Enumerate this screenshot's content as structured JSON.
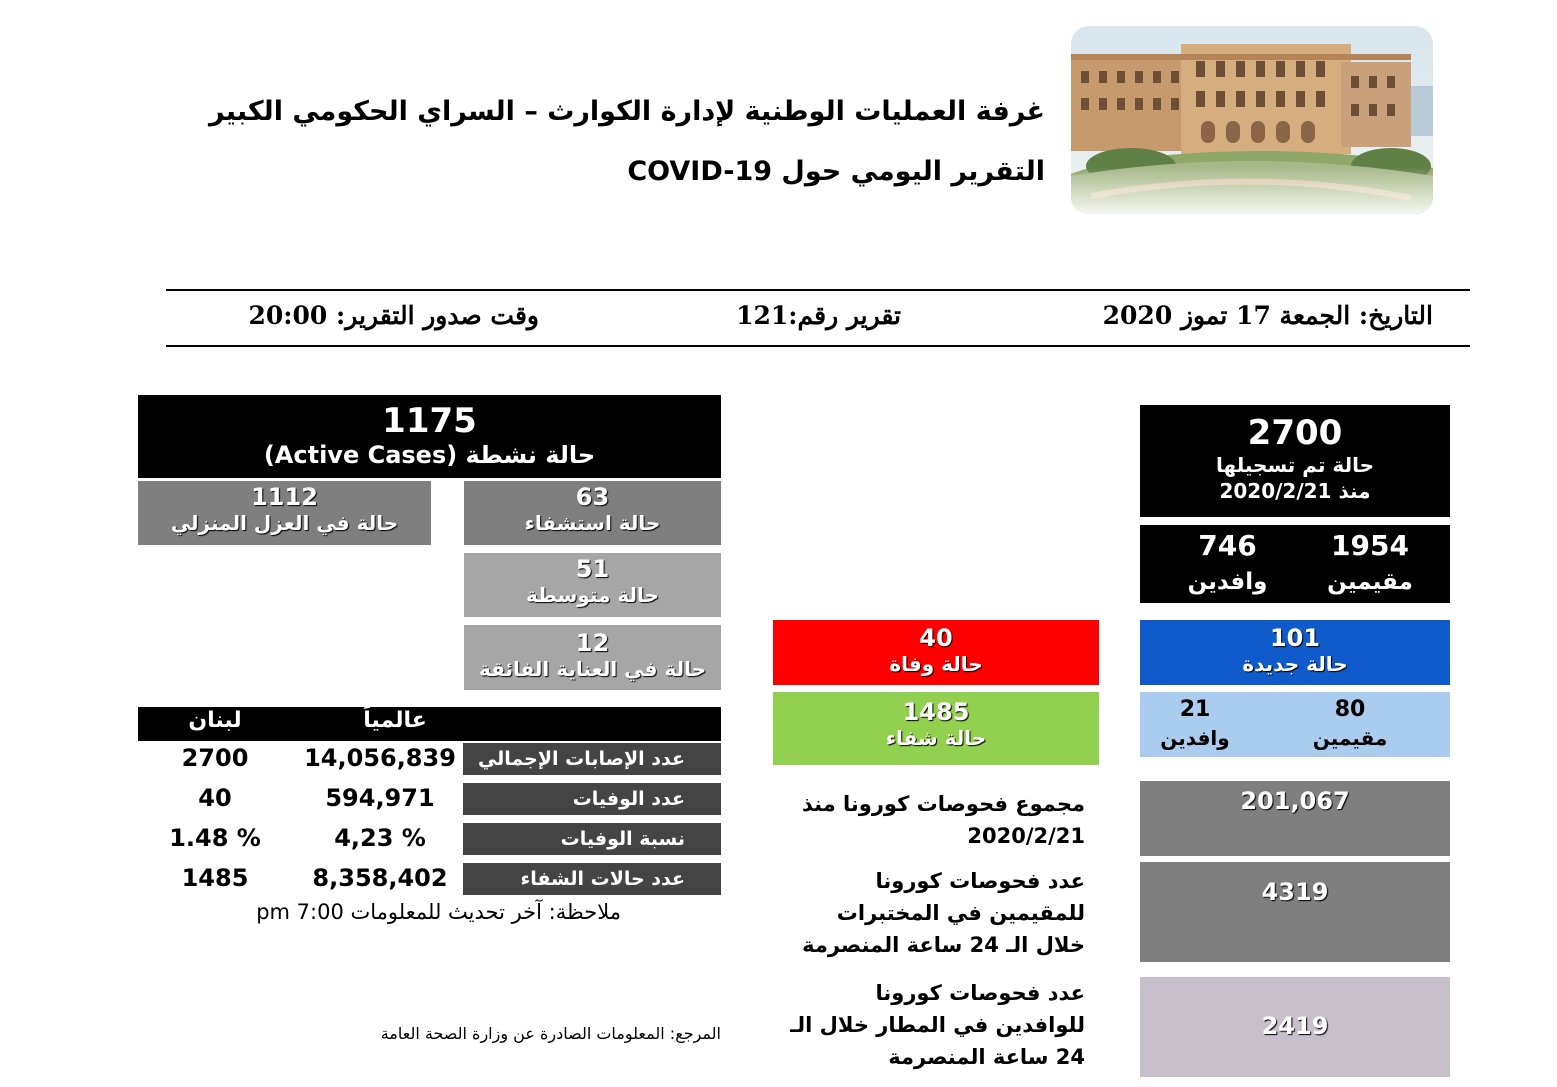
{
  "header": {
    "title_line1": "غرفة العمليات الوطنية لإدارة الكوارث – السراي الحكومي الكبير",
    "title_line2": "التقرير اليومي حول COVID-19"
  },
  "report_meta": {
    "date": "التاريخ: الجمعة 17 تموز 2020",
    "report_number": "تقرير رقم:121",
    "issue_time": "وقت صدور التقرير: 20:00"
  },
  "total_cases": {
    "value": "2700",
    "label": "حالة تم تسجيلها",
    "since": "منذ 2020/2/21",
    "residents_value": "1954",
    "residents_label": "مقيمين",
    "arrivals_value": "746",
    "arrivals_label": "وافدين"
  },
  "active_cases": {
    "value": "1175",
    "label": "حالة نشطة (Active Cases)",
    "home_isolation_value": "1112",
    "home_isolation_label": "حالة في العزل المنزلي",
    "hospitalized_value": "63",
    "hospitalized_label": "حالة استشفاء",
    "moderate_value": "51",
    "moderate_label": "حالة متوسطة",
    "icu_value": "12",
    "icu_label": "حالة في العناية الفائقة"
  },
  "new_cases": {
    "value": "101",
    "label": "حالة جديدة",
    "residents_value": "80",
    "residents_label": "مقيمين",
    "arrivals_value": "21",
    "arrivals_label": "وافدين"
  },
  "deaths": {
    "value": "40",
    "label": "حالة وفاة"
  },
  "recoveries": {
    "value": "1485",
    "label": "حالة شفاء"
  },
  "tests": {
    "total_label": "مجموع فحوصات كورونا منذ 2020/2/21",
    "total_value": "201,067",
    "residents_label": "عدد فحوصات كورونا للمقيمين في المختبرات خلال الـ 24 ساعة المنصرمة",
    "residents_value": "4319",
    "arrivals_label": "عدد فحوصات كورونا للوافدين في المطار خلال الـ 24 ساعة المنصرمة",
    "arrivals_value": "2419"
  },
  "comparison_table": {
    "col_lebanon": "لبنان",
    "col_global": "عالمياً",
    "rows": [
      {
        "label": "عدد الإصابات الإجمالي",
        "global": "14,056,839",
        "lebanon": "2700"
      },
      {
        "label": "عدد الوفيات",
        "global": "594,971",
        "lebanon": "40"
      },
      {
        "label": "نسبة الوفيات",
        "global": "4,23 %",
        "lebanon": "1.48 %"
      },
      {
        "label": "عدد حالات الشفاء",
        "global": "8,358,402",
        "lebanon": "1485"
      }
    ],
    "note": "ملاحظة: آخر تحديث للمعلومات 7:00 pm"
  },
  "footer": {
    "source": "المرجع: المعلومات الصادرة عن وزارة الصحة العامة"
  },
  "colors": {
    "black": "#000000",
    "dark_gray": "#7f7f7f",
    "mid_gray": "#a6a6a6",
    "red": "#ff0000",
    "green": "#92d050",
    "blue": "#0f5bcc",
    "light_blue": "#a9ccef",
    "lavender": "#c7c0cb",
    "table_label_bg": "#404040"
  }
}
